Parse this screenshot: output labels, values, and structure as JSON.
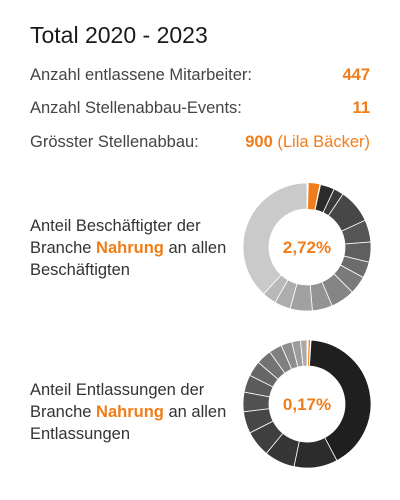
{
  "title": "Total 2020 - 2023",
  "stats": [
    {
      "label": "Anzahl entlassene Mitarbeiter:",
      "value": "447",
      "sub": ""
    },
    {
      "label": "Anzahl Stellenabbau-Events:",
      "value": "11",
      "sub": ""
    },
    {
      "label": "Grösster Stellenabbau:",
      "value": "900",
      "sub": "(Lila Bäcker)"
    }
  ],
  "donut1": {
    "text_before": "Anteil Beschäftigter der Branche ",
    "highlight": "Nahrung",
    "text_after": " an allen Beschäftigten",
    "center": "2,72%",
    "highlight_fraction": 0.0272
  },
  "donut2": {
    "text_before": "Anteil Entlassungen der Branche ",
    "highlight": "Nahrung",
    "text_after": " an allen Entlassungen",
    "center": "0,17%",
    "highlight_fraction": 0.0017
  },
  "colors": {
    "accent": "#f07d1a"
  }
}
